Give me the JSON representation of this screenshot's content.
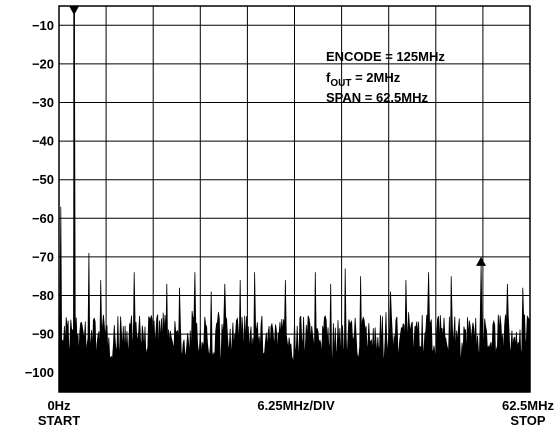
{
  "chart_data": {
    "type": "line",
    "title": "",
    "xlabel": "6.25MHz/DIV",
    "ylabel": "",
    "x_range_mhz": [
      0,
      62.5
    ],
    "ylim": [
      -105,
      -5
    ],
    "y_ticks": [
      -10,
      -20,
      -30,
      -40,
      -50,
      -60,
      -70,
      -80,
      -90,
      -100
    ],
    "x_divisions": 10,
    "grid": true,
    "x_start_label": "0Hz",
    "x_start_sub": "START",
    "x_stop_label": "62.5MHz",
    "x_stop_sub": "STOP",
    "annotation": {
      "line1": "ENCODE = 125MHz",
      "line2_main": "f",
      "line2_sub": "OUT",
      "line2_rest": " = 2MHz",
      "line3": "SPAN = 62.5MHz"
    },
    "fundamental": {
      "x_mhz": 2,
      "y": 0
    },
    "noise_floor": {
      "y_min": -97,
      "y_max": -85
    },
    "markers": [
      {
        "x_mhz": 2,
        "y": -5,
        "direction": "down"
      },
      {
        "x_mhz": 56,
        "y": -70,
        "direction": "up"
      }
    ],
    "spurs": [
      {
        "x_mhz": 0.3,
        "y": -57
      },
      {
        "x_mhz": 4,
        "y": -69
      },
      {
        "x_mhz": 5.5,
        "y": -76
      },
      {
        "x_mhz": 10,
        "y": -74
      },
      {
        "x_mhz": 14.3,
        "y": -77
      },
      {
        "x_mhz": 16,
        "y": -78
      },
      {
        "x_mhz": 18,
        "y": -74
      },
      {
        "x_mhz": 20.2,
        "y": -79
      },
      {
        "x_mhz": 22,
        "y": -77
      },
      {
        "x_mhz": 24,
        "y": -76
      },
      {
        "x_mhz": 26,
        "y": -74
      },
      {
        "x_mhz": 30,
        "y": -76
      },
      {
        "x_mhz": 34,
        "y": -74
      },
      {
        "x_mhz": 36,
        "y": -77
      },
      {
        "x_mhz": 38,
        "y": -73
      },
      {
        "x_mhz": 40,
        "y": -75
      },
      {
        "x_mhz": 44,
        "y": -79
      },
      {
        "x_mhz": 46,
        "y": -76
      },
      {
        "x_mhz": 49,
        "y": -74
      },
      {
        "x_mhz": 52,
        "y": -75
      },
      {
        "x_mhz": 56,
        "y": -72
      },
      {
        "x_mhz": 59.5,
        "y": -77
      },
      {
        "x_mhz": 61.5,
        "y": -78
      }
    ]
  }
}
